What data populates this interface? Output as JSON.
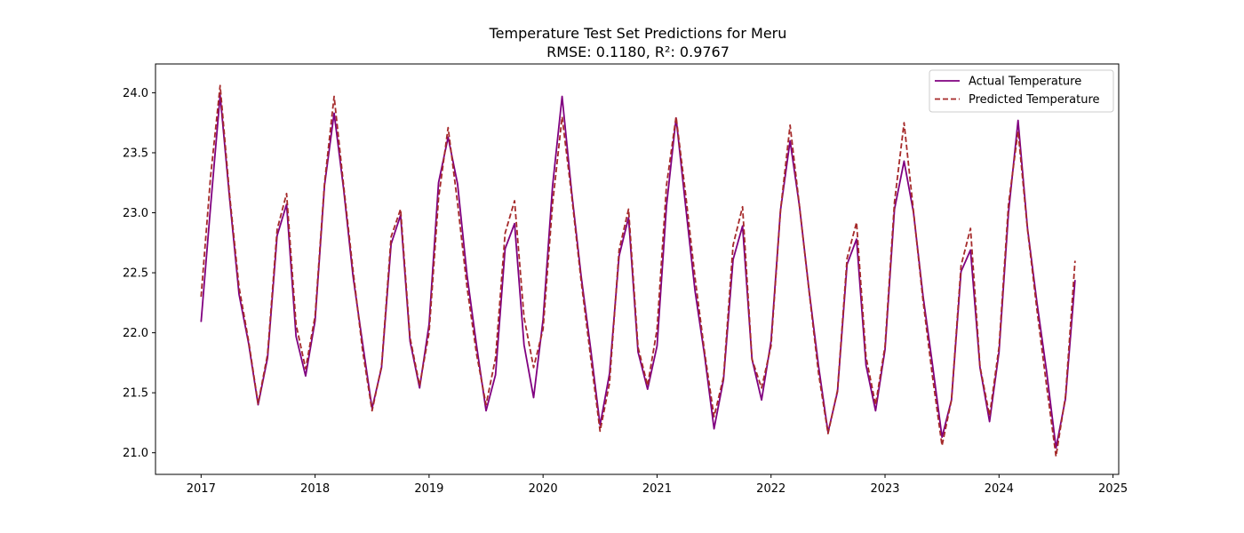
{
  "chart_data": {
    "type": "line",
    "title": "Temperature Test Set Predictions for Meru",
    "subtitle": "RMSE: 0.1180, R²: 0.9767",
    "xlabel": "",
    "ylabel": "",
    "xlim": [
      2016.6,
      2025.05
    ],
    "ylim": [
      20.82,
      24.24
    ],
    "x_ticks": [
      2017,
      2018,
      2019,
      2020,
      2021,
      2022,
      2023,
      2024,
      2025
    ],
    "y_ticks": [
      21.0,
      21.5,
      22.0,
      22.5,
      23.0,
      23.5,
      24.0
    ],
    "grid": false,
    "legend_position": "top-right",
    "x": [
      2017.0,
      2017.083,
      2017.167,
      2017.25,
      2017.333,
      2017.417,
      2017.5,
      2017.583,
      2017.667,
      2017.75,
      2017.833,
      2017.917,
      2018.0,
      2018.083,
      2018.167,
      2018.25,
      2018.333,
      2018.417,
      2018.5,
      2018.583,
      2018.667,
      2018.75,
      2018.833,
      2018.917,
      2019.0,
      2019.083,
      2019.167,
      2019.25,
      2019.333,
      2019.417,
      2019.5,
      2019.583,
      2019.667,
      2019.75,
      2019.833,
      2019.917,
      2020.0,
      2020.083,
      2020.167,
      2020.25,
      2020.333,
      2020.417,
      2020.5,
      2020.583,
      2020.667,
      2020.75,
      2020.833,
      2020.917,
      2021.0,
      2021.083,
      2021.167,
      2021.25,
      2021.333,
      2021.417,
      2021.5,
      2021.583,
      2021.667,
      2021.75,
      2021.833,
      2021.917,
      2022.0,
      2022.083,
      2022.167,
      2022.25,
      2022.333,
      2022.417,
      2022.5,
      2022.583,
      2022.667,
      2022.75,
      2022.833,
      2022.917,
      2023.0,
      2023.083,
      2023.167,
      2023.25,
      2023.333,
      2023.417,
      2023.5,
      2023.583,
      2023.667,
      2023.75,
      2023.833,
      2023.917,
      2024.0,
      2024.083,
      2024.167,
      2024.25,
      2024.333,
      2024.417,
      2024.5,
      2024.583,
      2024.667
    ],
    "series": [
      {
        "name": "Actual Temperature",
        "color": "#800080",
        "style": "solid",
        "values": [
          22.09,
          23.05,
          23.98,
          23.12,
          22.32,
          21.91,
          21.4,
          21.79,
          22.81,
          23.07,
          21.97,
          21.64,
          22.1,
          23.23,
          23.83,
          23.2,
          22.47,
          21.91,
          21.37,
          21.71,
          22.74,
          22.98,
          21.93,
          21.54,
          22.07,
          23.25,
          23.63,
          23.24,
          22.48,
          21.89,
          21.35,
          21.65,
          22.7,
          22.91,
          21.9,
          21.46,
          22.11,
          23.22,
          23.97,
          23.18,
          22.48,
          21.87,
          21.23,
          21.66,
          22.64,
          22.96,
          21.84,
          21.53,
          21.89,
          23.06,
          23.79,
          23.06,
          22.35,
          21.81,
          21.2,
          21.61,
          22.61,
          22.89,
          21.78,
          21.44,
          21.93,
          23.02,
          23.6,
          23.05,
          22.36,
          21.72,
          21.17,
          21.51,
          22.57,
          22.78,
          21.73,
          21.35,
          21.86,
          23.03,
          23.43,
          23.0,
          22.31,
          21.73,
          21.13,
          21.44,
          22.51,
          22.69,
          21.71,
          21.26,
          21.84,
          23.0,
          23.77,
          22.87,
          22.25,
          21.68,
          21.04,
          21.45,
          22.44
        ]
      },
      {
        "name": "Predicted Temperature",
        "color": "#a52a2a",
        "style": "dashed",
        "values": [
          22.3,
          23.3,
          24.06,
          23.15,
          22.38,
          21.93,
          21.41,
          21.82,
          22.86,
          23.16,
          22.07,
          21.7,
          22.14,
          23.25,
          23.97,
          23.23,
          22.52,
          21.85,
          21.35,
          21.72,
          22.8,
          23.03,
          21.96,
          21.56,
          22.0,
          23.12,
          23.71,
          23.08,
          22.38,
          21.82,
          21.4,
          21.79,
          22.83,
          23.1,
          22.13,
          21.71,
          22.03,
          23.07,
          23.8,
          23.15,
          22.44,
          21.8,
          21.18,
          21.58,
          22.69,
          23.03,
          21.88,
          21.56,
          22.03,
          23.23,
          23.8,
          23.16,
          22.46,
          21.84,
          21.3,
          21.63,
          22.73,
          23.05,
          21.78,
          21.54,
          21.89,
          23.02,
          23.73,
          23.05,
          22.35,
          21.66,
          21.16,
          21.52,
          22.62,
          22.92,
          21.8,
          21.4,
          21.89,
          23.09,
          23.75,
          23.01,
          22.27,
          21.63,
          21.06,
          21.44,
          22.56,
          22.87,
          21.72,
          21.31,
          21.88,
          23.07,
          23.68,
          22.86,
          22.19,
          21.56,
          20.97,
          21.47,
          22.6
        ]
      }
    ]
  }
}
